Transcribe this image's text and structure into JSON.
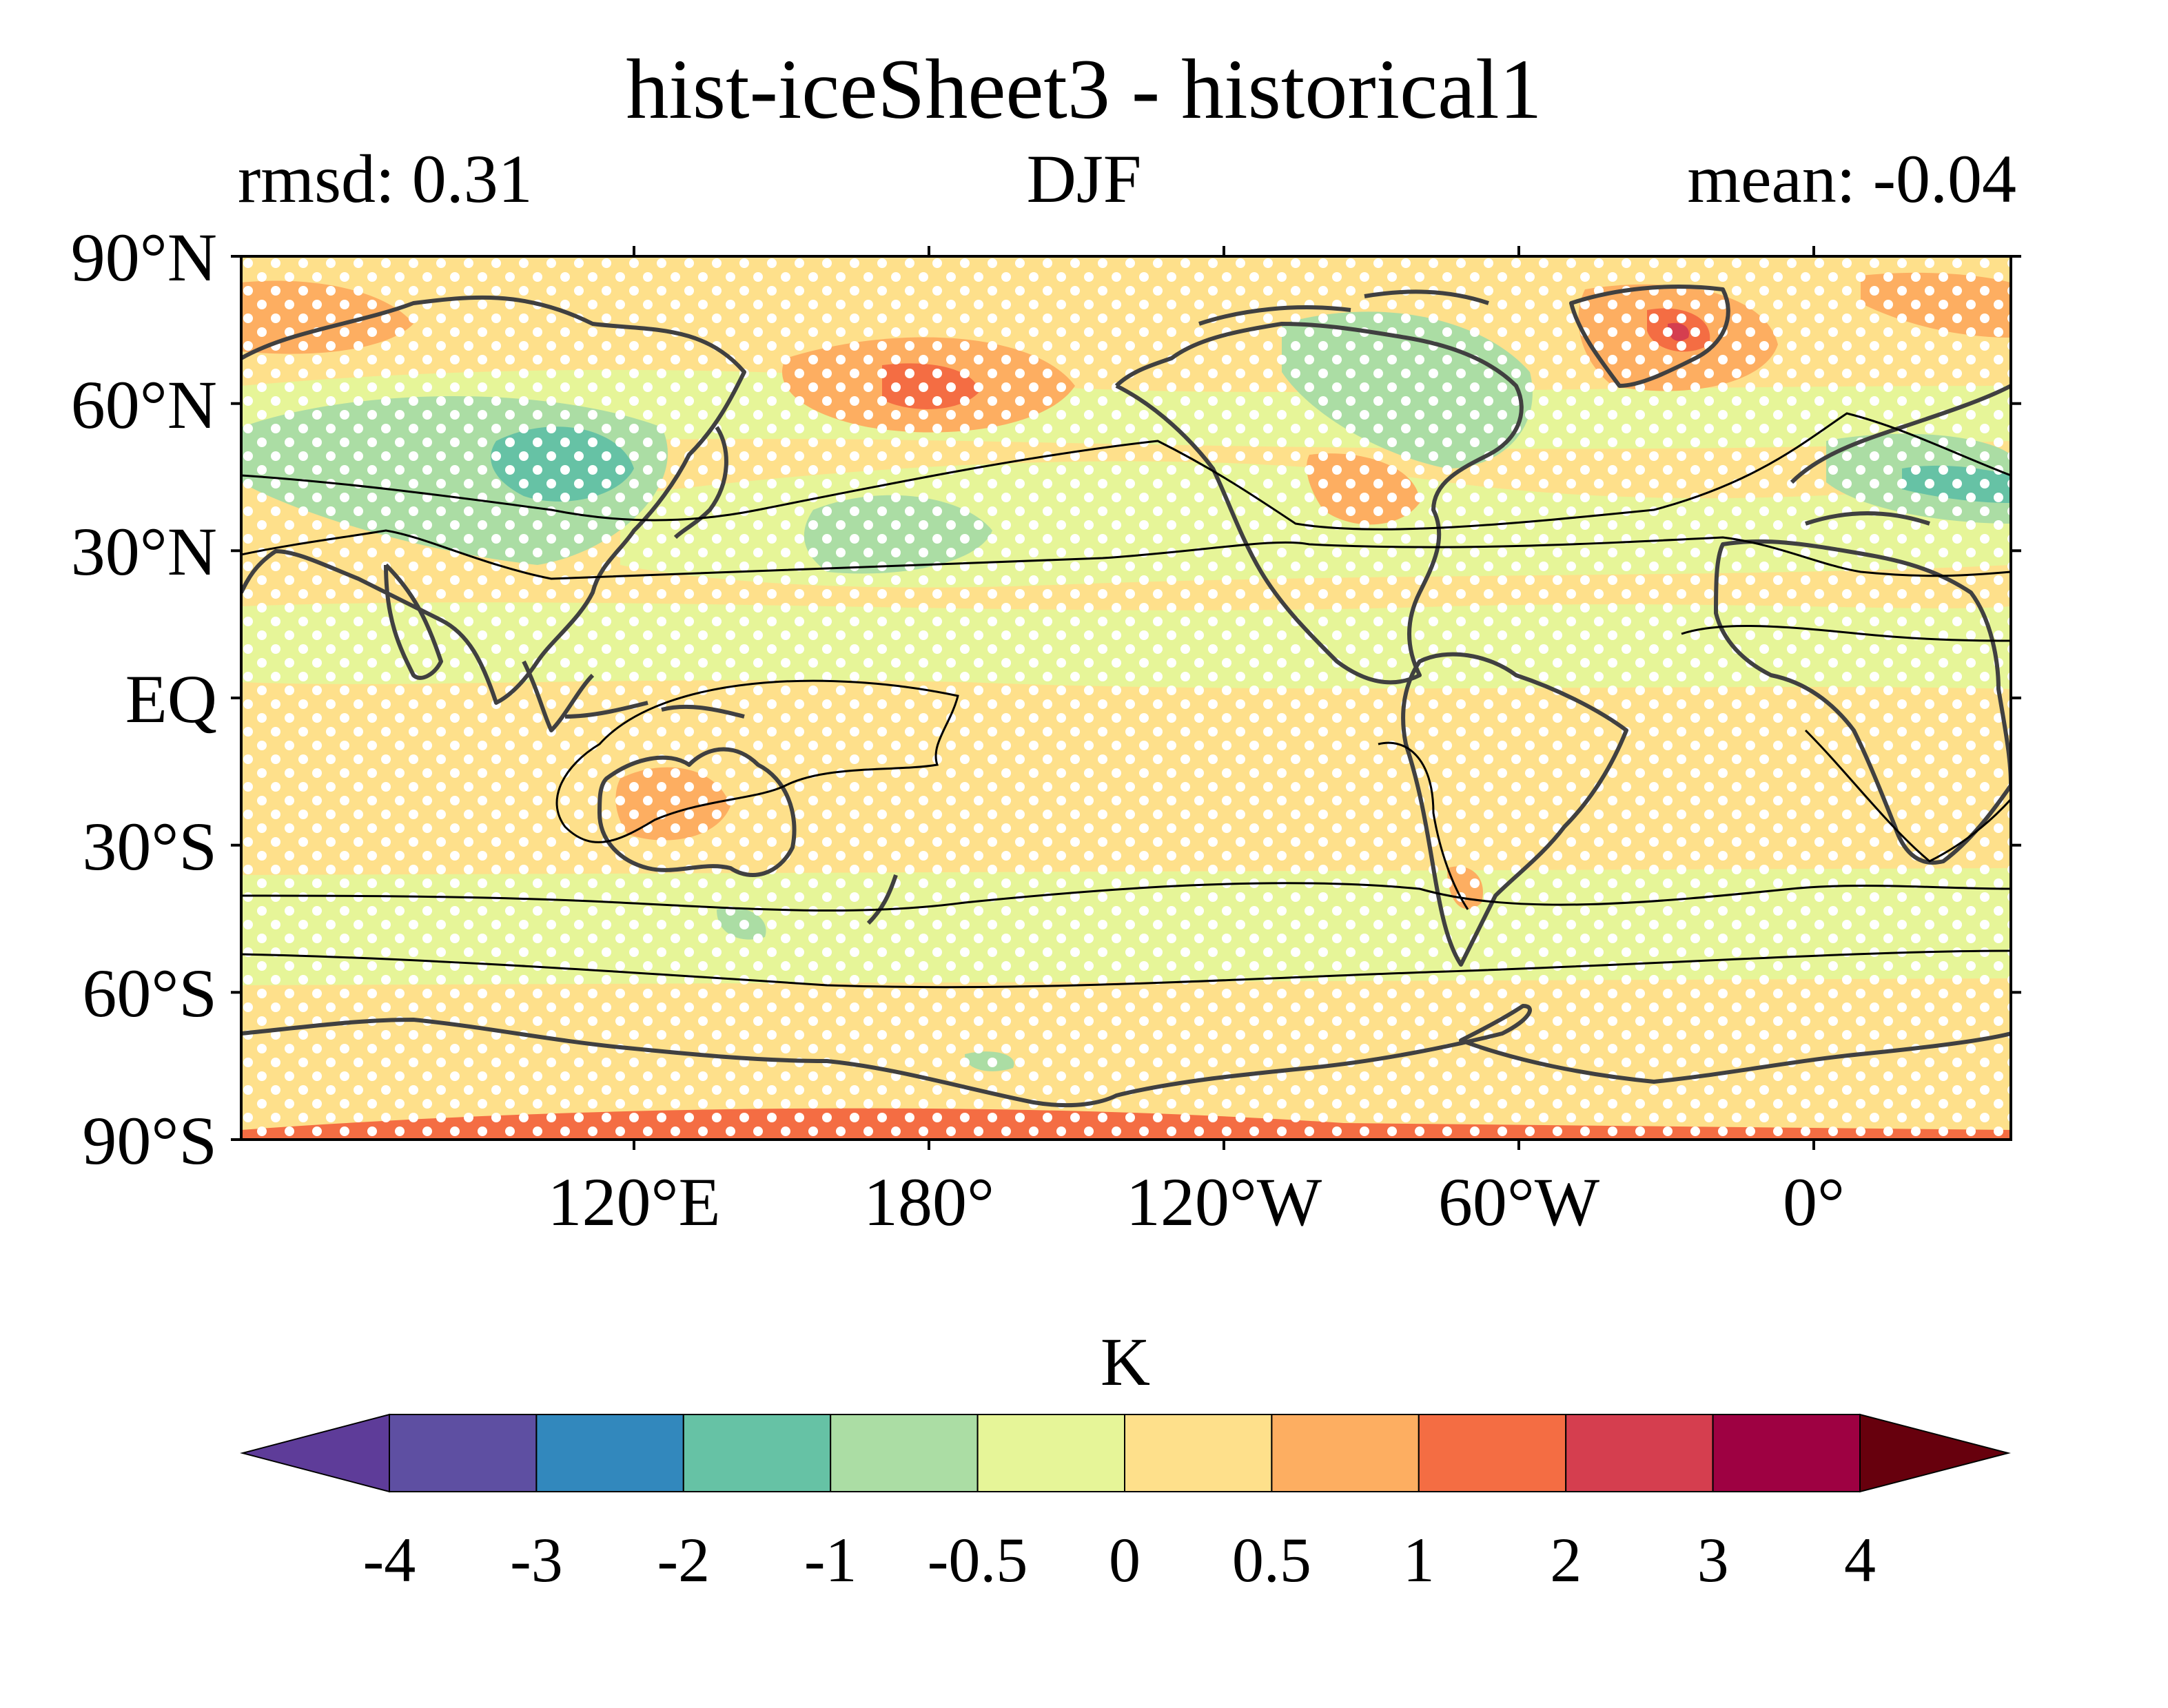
{
  "title": "hist-iceSheet3 - historical1",
  "subtitle_left": "rmsd: 0.31",
  "subtitle_center": "DJF",
  "subtitle_right": "mean: -0.04",
  "lat_labels": [
    "90°N",
    "60°N",
    "30°N",
    "EQ",
    "30°S",
    "60°S",
    "90°S"
  ],
  "lon_labels": [
    "120°E",
    "180°",
    "120°W",
    "60°W",
    "0°"
  ],
  "colorbar": {
    "unit": "K",
    "tick_labels": [
      "-4",
      "-3",
      "-2",
      "-1",
      "-0.5",
      "0",
      "0.5",
      "1",
      "2",
      "3",
      "4"
    ],
    "colors": [
      "#5e3c99",
      "#5e4fa2",
      "#3288bd",
      "#66c2a5",
      "#abdda4",
      "#e6f598",
      "#fee08b",
      "#fdae61",
      "#f46d43",
      "#d53e4f",
      "#9e0142",
      "#67000d"
    ]
  },
  "colors": {
    "land_outline": "#404040",
    "contour_line": "#000000",
    "stipple": "#ffffff"
  }
}
